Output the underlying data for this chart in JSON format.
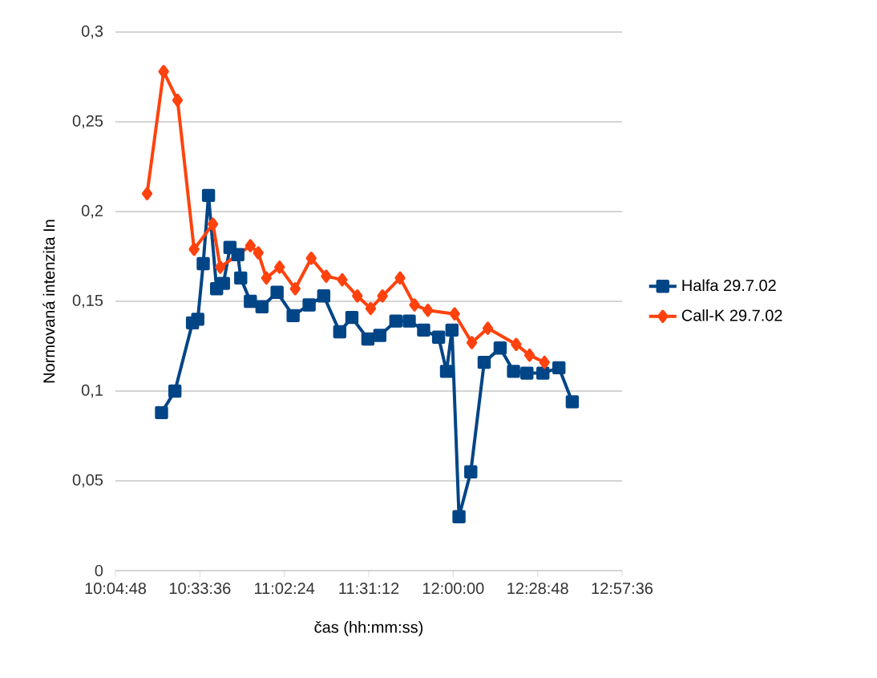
{
  "chart_data": {
    "type": "line",
    "xlabel": "čas (hh:mm:ss)",
    "ylabel": "Normovaná intenzita In",
    "xlim": [
      10.08,
      12.96
    ],
    "ylim": [
      0,
      0.3
    ],
    "xticks": [
      {
        "value": 10.08,
        "label": "10:04:48"
      },
      {
        "value": 10.56,
        "label": "10:33:36"
      },
      {
        "value": 11.04,
        "label": "11:02:24"
      },
      {
        "value": 11.52,
        "label": "11:31:12"
      },
      {
        "value": 12.0,
        "label": "12:00:00"
      },
      {
        "value": 12.48,
        "label": "12:28:48"
      },
      {
        "value": 12.96,
        "label": "12:57:36"
      }
    ],
    "yticks": [
      {
        "value": 0,
        "label": "0"
      },
      {
        "value": 0.05,
        "label": "0,05"
      },
      {
        "value": 0.1,
        "label": "0,1"
      },
      {
        "value": 0.15,
        "label": "0,15"
      },
      {
        "value": 0.2,
        "label": "0,2"
      },
      {
        "value": 0.25,
        "label": "0,25"
      },
      {
        "value": 0.3,
        "label": "0,3"
      }
    ],
    "grid": "y",
    "legend": "right",
    "line_style": "solid",
    "series": [
      {
        "name": "Halfa 29.7.02",
        "color": "#004586",
        "marker": "square",
        "x": [
          10.342,
          10.418,
          10.518,
          10.548,
          10.579,
          10.609,
          10.655,
          10.694,
          10.731,
          10.776,
          10.792,
          10.847,
          10.913,
          10.999,
          11.09,
          11.181,
          11.264,
          11.355,
          11.424,
          11.515,
          11.583,
          11.674,
          11.75,
          11.832,
          11.917,
          11.962,
          11.993,
          12.033,
          12.1,
          12.176,
          12.267,
          12.343,
          12.419,
          12.51,
          12.601,
          12.677
        ],
        "values": [
          0.088,
          0.1,
          0.138,
          0.14,
          0.171,
          0.209,
          0.157,
          0.16,
          0.18,
          0.176,
          0.163,
          0.15,
          0.147,
          0.155,
          0.142,
          0.148,
          0.153,
          0.133,
          0.141,
          0.129,
          0.131,
          0.139,
          0.139,
          0.134,
          0.13,
          0.111,
          0.134,
          0.03,
          0.055,
          0.116,
          0.124,
          0.111,
          0.11,
          0.11,
          0.113,
          0.094
        ]
      },
      {
        "name": "Call-K 29.7.02",
        "color": "#ff420e",
        "marker": "diamond",
        "x": [
          10.26,
          10.354,
          10.433,
          10.527,
          10.634,
          10.676,
          10.847,
          10.892,
          10.938,
          11.013,
          11.102,
          11.193,
          11.278,
          11.369,
          11.455,
          11.531,
          11.598,
          11.698,
          11.78,
          11.856,
          12.008,
          12.106,
          12.197,
          12.358,
          12.434,
          12.519
        ],
        "values": [
          0.21,
          0.278,
          0.262,
          0.179,
          0.193,
          0.169,
          0.181,
          0.177,
          0.163,
          0.169,
          0.157,
          0.174,
          0.164,
          0.162,
          0.153,
          0.146,
          0.153,
          0.163,
          0.148,
          0.145,
          0.143,
          0.127,
          0.135,
          0.126,
          0.12,
          0.116
        ]
      }
    ]
  }
}
